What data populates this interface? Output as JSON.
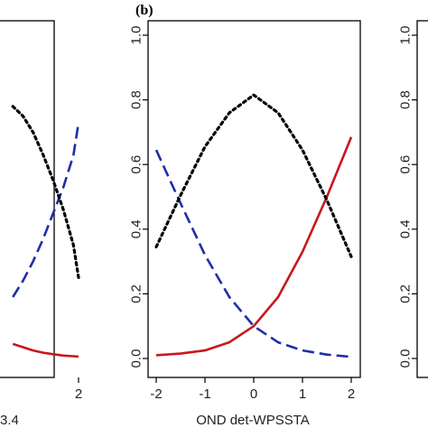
{
  "figure": {
    "panel_label": "(b)",
    "left_xlabel_fragment": "3.4",
    "center_xlabel": "OND det-WPSSTA"
  },
  "colors": {
    "red": "#c8171d",
    "blue": "#1f2ea8",
    "black": "#000000"
  },
  "chart_data": [
    {
      "type": "line",
      "panel": "left (partially visible)",
      "xlim": [
        -2,
        2
      ],
      "ylim": [
        0,
        1
      ],
      "x_ticks": [
        2
      ],
      "x_tick_labels": [
        "2"
      ],
      "xlabel": "3.4",
      "series": [
        {
          "style": "solid",
          "color": "#c8171d",
          "x": [
            -0.6,
            -0.2,
            0.2,
            0.6,
            1.0,
            1.4,
            1.8,
            2.0
          ],
          "y": [
            0.045,
            0.035,
            0.025,
            0.018,
            0.013,
            0.009,
            0.007,
            0.006
          ]
        },
        {
          "style": "dashed",
          "color": "#1f2ea8",
          "x": [
            -0.6,
            -0.2,
            0.2,
            0.6,
            1.0,
            1.4,
            1.8,
            2.0
          ],
          "y": [
            0.19,
            0.24,
            0.3,
            0.37,
            0.45,
            0.53,
            0.63,
            0.73
          ]
        },
        {
          "style": "dotted",
          "color": "#000000",
          "x": [
            -0.6,
            -0.2,
            0.2,
            0.6,
            1.0,
            1.4,
            1.8,
            2.0
          ],
          "y": [
            0.78,
            0.75,
            0.7,
            0.63,
            0.55,
            0.46,
            0.35,
            0.25
          ]
        }
      ]
    },
    {
      "type": "line",
      "panel": "b (center)",
      "xlabel": "OND det-WPSSTA",
      "xlim": [
        -2,
        2
      ],
      "ylim": [
        0,
        1
      ],
      "x_ticks": [
        -2,
        -1,
        0,
        1,
        2
      ],
      "x_tick_labels": [
        "-2",
        "-1",
        "0",
        "1",
        "2"
      ],
      "y_ticks": [
        0,
        0.2,
        0.4,
        0.6,
        0.8,
        1.0
      ],
      "y_tick_labels": [
        "0.0",
        "0.2",
        "0.4",
        "0.6",
        "0.8",
        "1.0"
      ],
      "series": [
        {
          "style": "solid",
          "color": "#c8171d",
          "x": [
            -2,
            -1.5,
            -1,
            -0.5,
            0,
            0.5,
            1,
            1.5,
            2
          ],
          "y": [
            0.01,
            0.015,
            0.025,
            0.05,
            0.1,
            0.19,
            0.33,
            0.5,
            0.685
          ]
        },
        {
          "style": "dashed",
          "color": "#1f2ea8",
          "x": [
            -2,
            -1.5,
            -1,
            -0.5,
            0,
            0.5,
            1,
            1.5,
            2
          ],
          "y": [
            0.645,
            0.48,
            0.32,
            0.19,
            0.1,
            0.05,
            0.025,
            0.012,
            0.005
          ]
        },
        {
          "style": "dotted",
          "color": "#000000",
          "x": [
            -2,
            -1.5,
            -1,
            -0.5,
            0,
            0.5,
            1,
            1.5,
            2
          ],
          "y": [
            0.345,
            0.505,
            0.655,
            0.76,
            0.815,
            0.76,
            0.645,
            0.49,
            0.315
          ]
        }
      ]
    },
    {
      "type": "line",
      "panel": "right (partially visible)",
      "ylim": [
        0,
        1
      ],
      "y_ticks": [
        0,
        0.2,
        0.4,
        0.6,
        0.8,
        1.0
      ],
      "y_tick_labels": [
        "0.0",
        "0.2",
        "0.4",
        "0.6",
        "0.8",
        "1.0"
      ],
      "series": []
    }
  ]
}
